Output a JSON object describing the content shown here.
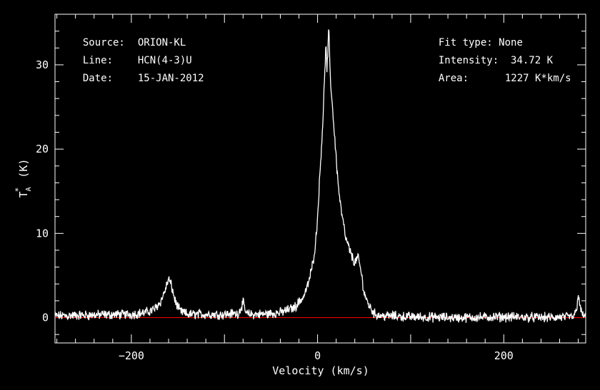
{
  "header": {
    "left": [
      {
        "key": "Source:",
        "value": "ORION-KL"
      },
      {
        "key": "Line:",
        "value": "HCN(4-3)U"
      },
      {
        "key": "Date:",
        "value": "15-JAN-2012"
      }
    ],
    "right": [
      {
        "key": "Fit type:",
        "value": "None"
      },
      {
        "key": "Intensity:",
        "value": "34.72 K"
      },
      {
        "key": "Area:",
        "value": "1227 K*km/s"
      }
    ]
  },
  "colors": {
    "background": "#000000",
    "axes": "#ffffff",
    "spectrum": "#ffffff",
    "baseline": "#ff0000"
  },
  "chart_data": {
    "type": "line",
    "title": "",
    "xlabel": "Velocity (km/s)",
    "ylabel": "T*A (K)",
    "xlim": [
      -282,
      288
    ],
    "ylim": [
      -3,
      36
    ],
    "xticks": [
      -200,
      0,
      200
    ],
    "xtick_labels": [
      "−200",
      "0",
      "200"
    ],
    "yticks": [
      0,
      10,
      20,
      30
    ],
    "ytick_labels": [
      "0",
      "10",
      "20",
      "30"
    ],
    "grid": false,
    "baseline": 0,
    "series": [
      {
        "x": [
          -282,
          -250,
          -200,
          -185,
          -175,
          -168,
          -163,
          -160,
          -157,
          -153,
          -148,
          -140,
          -120,
          -100,
          -85,
          -80,
          -78,
          -76,
          -72,
          -60,
          -40,
          -25,
          -15,
          -10,
          -5,
          -2,
          0,
          2,
          4,
          6,
          7,
          8,
          9,
          10,
          11,
          12,
          13,
          14,
          16,
          18,
          20,
          22,
          25,
          28,
          30,
          33,
          36,
          40,
          43,
          45,
          48,
          50,
          53,
          55,
          58,
          60,
          62,
          66,
          70,
          80,
          100,
          150,
          200,
          250,
          275,
          278,
          280,
          282,
          285,
          288
        ],
        "y": [
          0.2,
          0.3,
          0.4,
          0.6,
          1.0,
          2.0,
          3.5,
          4.6,
          3.8,
          2.0,
          0.8,
          0.4,
          0.4,
          0.4,
          0.5,
          1.8,
          0.9,
          0.4,
          0.4,
          0.4,
          0.6,
          1.2,
          2.5,
          4.0,
          6.5,
          9.0,
          12.0,
          16.0,
          20.0,
          24.0,
          27.0,
          30.0,
          32.3,
          29.5,
          31.0,
          34.7,
          30.5,
          28.0,
          25.0,
          22.0,
          19.0,
          16.0,
          13.0,
          11.0,
          9.5,
          8.5,
          7.5,
          6.5,
          7.2,
          6.5,
          4.5,
          3.0,
          2.0,
          1.5,
          1.0,
          0.6,
          0.4,
          0.3,
          0.2,
          0.2,
          0.1,
          0.0,
          0.1,
          0.0,
          0.1,
          0.8,
          3.0,
          1.0,
          0.3,
          0.1
        ]
      }
    ]
  }
}
